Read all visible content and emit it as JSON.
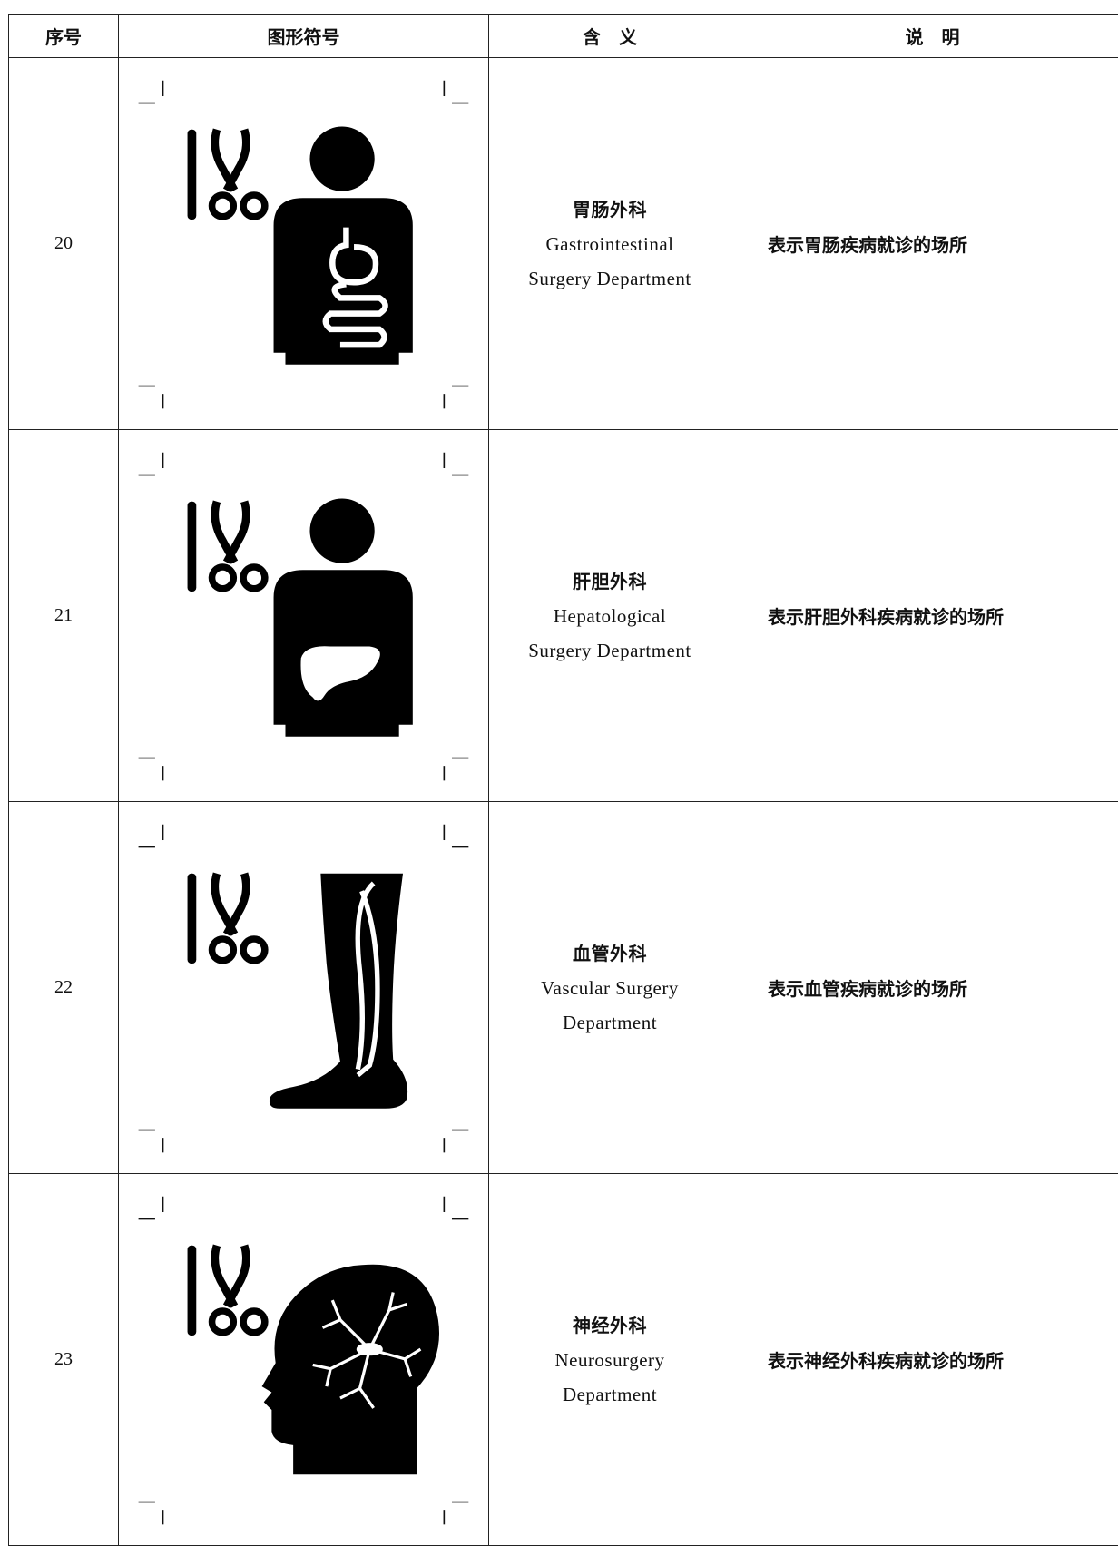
{
  "header": [
    "序号",
    "图形符号",
    "含　义",
    "说　明"
  ],
  "rows": [
    {
      "number": "20",
      "meaning": [
        "胃肠外科",
        "Gastrointestinal",
        "Surgery Department"
      ],
      "description": "表示胃肠疾病就诊的场所"
    },
    {
      "number": "21",
      "meaning": [
        "肝胆外科",
        "Hepatological",
        "Surgery Department"
      ],
      "description": "表示肝胆外科疾病就诊的场所"
    },
    {
      "number": "22",
      "meaning": [
        "血管外科",
        "Vascular Surgery",
        "Department"
      ],
      "description": "表示血管疾病就诊的场所"
    },
    {
      "number": "23",
      "meaning": [
        "神经外科",
        "Neurosurgery",
        "Department"
      ],
      "description": "表示神经外科疾病就诊的场所"
    }
  ]
}
